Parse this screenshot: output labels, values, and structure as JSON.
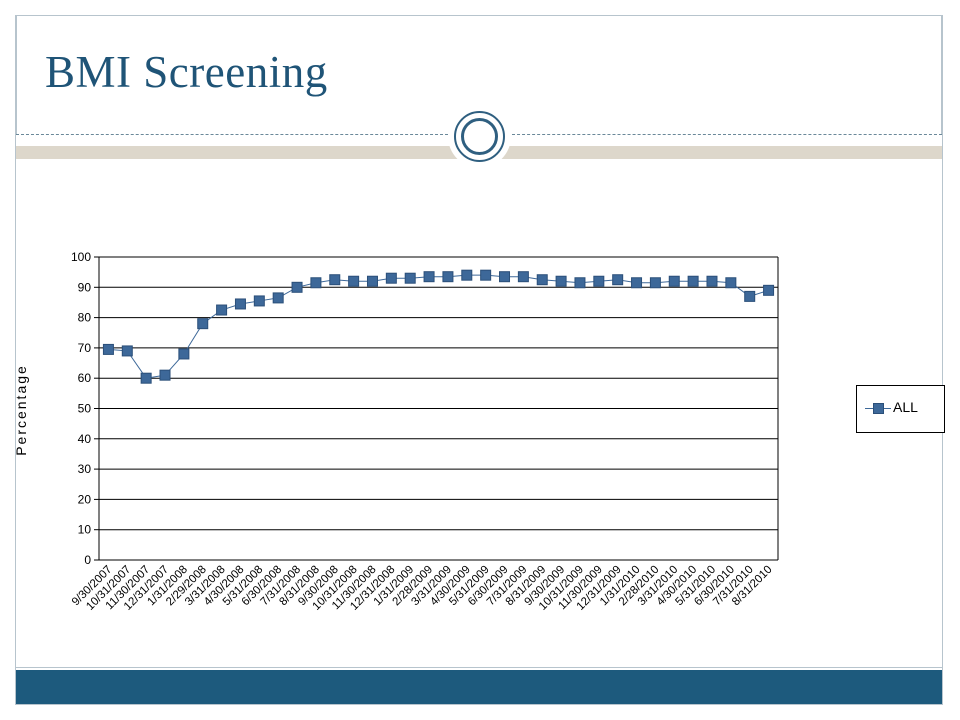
{
  "slide": {
    "title": "BMI Screening",
    "colors": {
      "title": "#1f5477",
      "footer": "#1d5a7d",
      "band": "#ddd7cb",
      "series": "#3d6899"
    }
  },
  "chart_data": {
    "type": "line",
    "title": "",
    "xlabel": "",
    "ylabel": "Percentage",
    "ylim": [
      0,
      100
    ],
    "yticks": [
      0,
      10,
      20,
      30,
      40,
      50,
      60,
      70,
      80,
      90,
      100
    ],
    "grid": true,
    "legend_position": "right",
    "categories": [
      "9/30/2007",
      "10/31/2007",
      "11/30/2007",
      "12/31/2007",
      "1/31/2008",
      "2/29/2008",
      "3/31/2008",
      "4/30/2008",
      "5/31/2008",
      "6/30/2008",
      "7/31/2008",
      "8/31/2008",
      "9/30/2008",
      "10/31/2008",
      "11/30/2008",
      "12/31/2008",
      "1/31/2009",
      "2/28/2009",
      "3/31/2009",
      "4/30/2009",
      "5/31/2009",
      "6/30/2009",
      "7/31/2009",
      "8/31/2009",
      "9/30/2009",
      "10/31/2009",
      "11/30/2009",
      "12/31/2009",
      "1/31/2010",
      "2/28/2010",
      "3/31/2010",
      "4/30/2010",
      "5/31/2010",
      "6/30/2010",
      "7/31/2010",
      "8/31/2010"
    ],
    "series": [
      {
        "name": "ALL",
        "values": [
          69.5,
          69,
          60,
          61,
          68,
          78,
          82.5,
          84.5,
          85.5,
          86.5,
          90,
          91.5,
          92.5,
          92,
          92,
          93,
          93,
          93.5,
          93.5,
          94,
          94,
          93.5,
          93.5,
          92.5,
          92,
          91.5,
          92,
          92.5,
          91.5,
          91.5,
          92,
          92,
          92,
          91.5,
          87,
          89
        ]
      }
    ]
  }
}
